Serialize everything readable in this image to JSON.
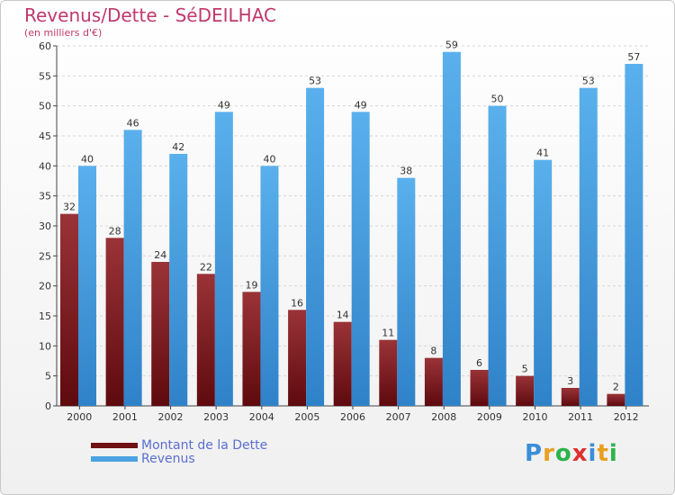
{
  "header": {
    "title": "Revenus/Dette - SéDEILHAC",
    "subtitle": "(en milliers d'€)"
  },
  "legend": {
    "debt_label": "Montant de la Dette",
    "revenue_label": "Revenus"
  },
  "logo": {
    "letters": [
      "P",
      "r",
      "o",
      "x",
      "i",
      "t",
      "i"
    ],
    "colors": [
      "#3a8fd8",
      "#e8a020",
      "#2db34a",
      "#e03030",
      "#3a8fd8",
      "#e8a020",
      "#2db34a"
    ]
  },
  "colors": {
    "debt": "#7a1418",
    "revenue": "#4ba3e3",
    "title": "#c0396b"
  },
  "chart_data": {
    "type": "bar",
    "title": "Revenus/Dette - SéDEILHAC",
    "subtitle": "(en milliers d'€)",
    "categories": [
      "2000",
      "2001",
      "2002",
      "2003",
      "2004",
      "2005",
      "2006",
      "2007",
      "2008",
      "2009",
      "2010",
      "2011",
      "2012"
    ],
    "series": [
      {
        "name": "Montant de la Dette",
        "values": [
          32,
          28,
          24,
          22,
          19,
          16,
          14,
          11,
          8,
          6,
          5,
          3,
          2
        ]
      },
      {
        "name": "Revenus",
        "values": [
          40,
          46,
          42,
          49,
          40,
          53,
          49,
          38,
          59,
          50,
          41,
          53,
          57
        ]
      }
    ],
    "ylim": [
      0,
      60
    ],
    "yticks": [
      0,
      5,
      10,
      15,
      20,
      25,
      30,
      35,
      40,
      45,
      50,
      55,
      60
    ],
    "grid": true,
    "legend_position": "bottom-left"
  }
}
